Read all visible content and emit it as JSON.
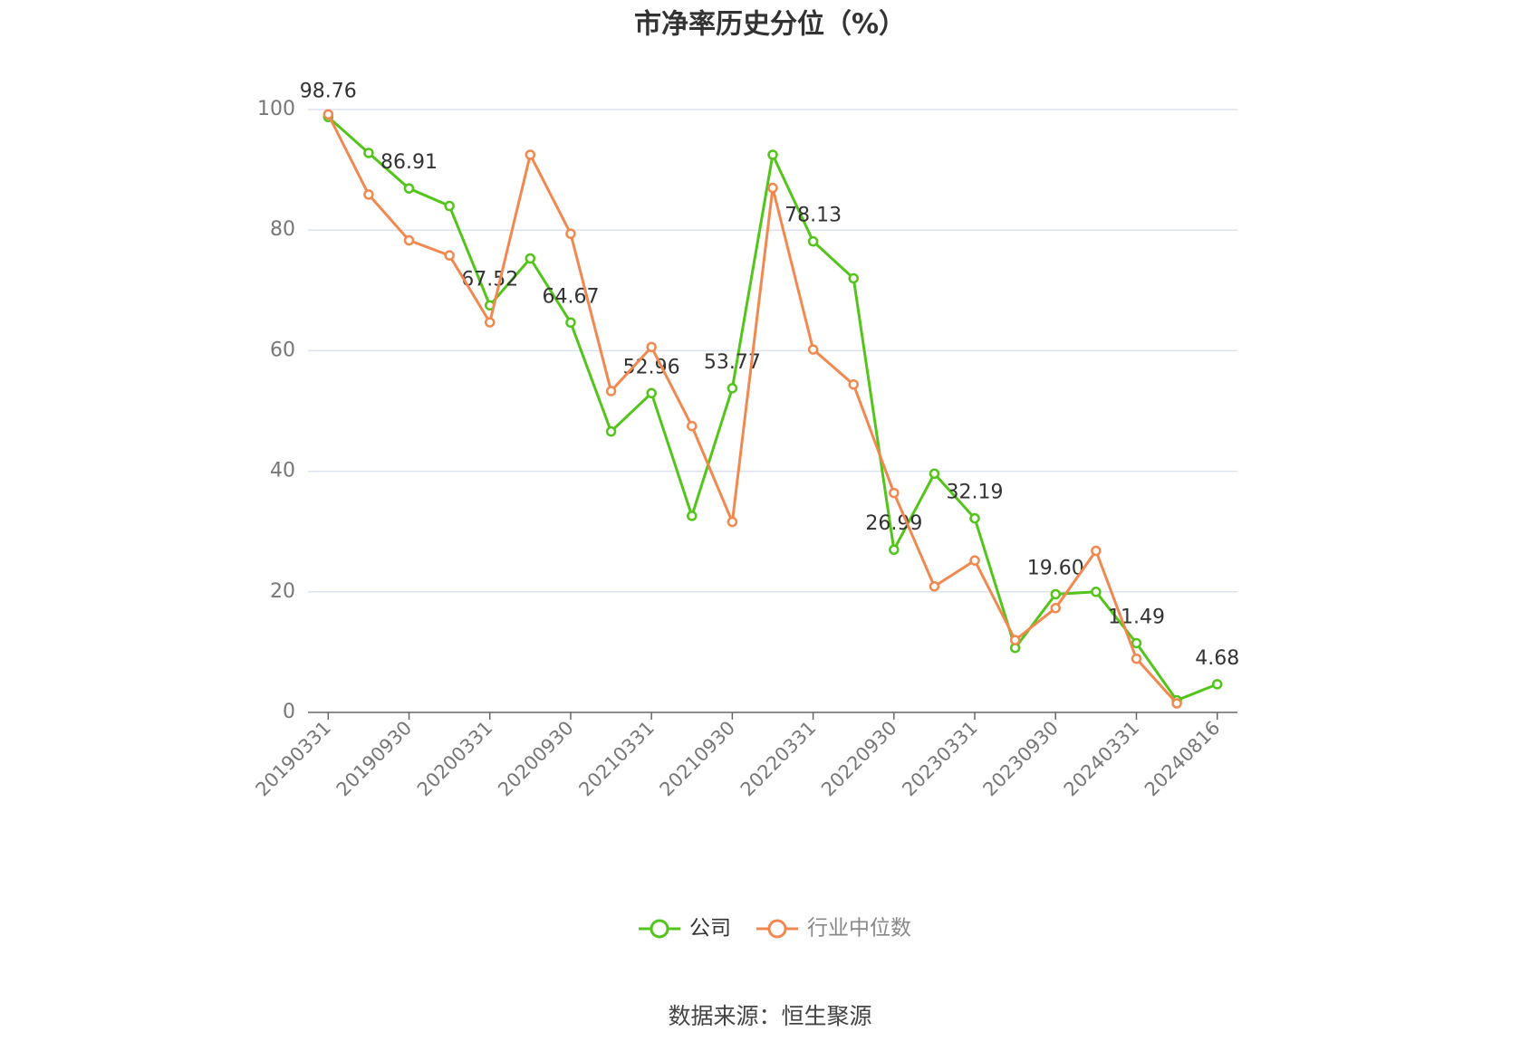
{
  "chart_data": {
    "type": "line",
    "title": "市净率历史分位（%）",
    "categories": [
      "20190331",
      null,
      "20190930",
      null,
      "20200331",
      null,
      "20200930",
      null,
      "20210331",
      null,
      "20210930",
      null,
      "20220331",
      null,
      "20220930",
      null,
      "20230331",
      null,
      "20230930",
      null,
      "20240331",
      null,
      "20240816"
    ],
    "series": [
      {
        "name": "公司",
        "color": "#52c41a",
        "values": [
          98.76,
          92.8,
          86.91,
          84.0,
          67.52,
          75.3,
          64.67,
          46.6,
          52.96,
          32.6,
          53.77,
          92.5,
          78.13,
          72.0,
          26.99,
          39.6,
          32.19,
          10.7,
          19.6,
          20.0,
          11.49,
          2.0,
          4.68
        ],
        "value_labels": [
          "98.76",
          null,
          "86.91",
          null,
          "67.52",
          null,
          "64.67",
          null,
          "52.96",
          null,
          "53.77",
          null,
          "78.13",
          null,
          "26.99",
          null,
          "32.19",
          null,
          "19.60",
          null,
          "11.49",
          null,
          "4.68"
        ]
      },
      {
        "name": "行业中位数",
        "color": "#f0884f",
        "values": [
          99.2,
          85.9,
          78.3,
          75.8,
          64.7,
          92.5,
          79.4,
          53.3,
          60.6,
          47.5,
          31.6,
          87.0,
          60.2,
          54.4,
          36.4,
          20.9,
          25.2,
          12.0,
          17.3,
          26.8,
          8.9,
          1.5,
          null
        ]
      }
    ],
    "ylim": [
      0,
      100
    ],
    "yticks": [
      0,
      20,
      40,
      60,
      80,
      100
    ],
    "grid": true,
    "legend": "bottom",
    "source": "数据来源：恒生聚源"
  }
}
